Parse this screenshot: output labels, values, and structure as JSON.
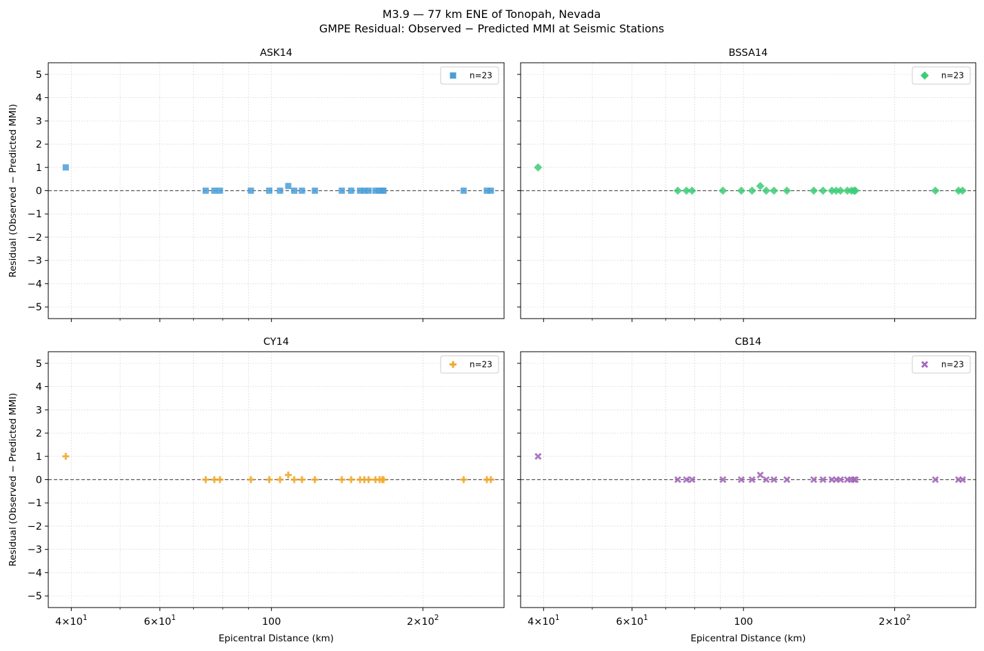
{
  "figure": {
    "title_line1": "M3.9 — 77 km ENE of Tonopah, Nevada",
    "title_line2": "GMPE Residual: Observed − Predicted MMI at Seismic Stations"
  },
  "chart_data": [
    {
      "type": "scatter",
      "title": "ASK14",
      "xlabel": "",
      "ylabel": "Residual (Observed − Predicted MMI)",
      "xscale": "log",
      "xlim": [
        36,
        290
      ],
      "ylim": [
        -5.5,
        5.5
      ],
      "yticks": [
        -5,
        -4,
        -3,
        -2,
        -1,
        0,
        1,
        2,
        3,
        4,
        5
      ],
      "grid": true,
      "reference_line_y": 0,
      "legend": {
        "label": "n=23",
        "placement": "top-right"
      },
      "series": [
        {
          "name": "n=23",
          "marker": "square",
          "color": "#4a9fd8",
          "x": [
            39.0,
            74.0,
            77.0,
            79.0,
            91.0,
            99.0,
            104.0,
            108.0,
            111.0,
            115.0,
            122.0,
            138.0,
            144.0,
            150.0,
            153.0,
            156.0,
            161.0,
            164.0,
            166.0,
            167.0,
            241.0,
            268.0,
            273.0
          ],
          "y": [
            1.0,
            0.0,
            0.0,
            0.0,
            0.0,
            0.0,
            0.0,
            0.2,
            0.0,
            0.0,
            0.0,
            0.0,
            0.0,
            0.0,
            0.0,
            0.0,
            0.0,
            0.0,
            0.0,
            0.0,
            0.0,
            0.0,
            0.0
          ]
        }
      ]
    },
    {
      "type": "scatter",
      "title": "BSSA14",
      "xlabel": "",
      "ylabel": "",
      "xscale": "log",
      "xlim": [
        36,
        290
      ],
      "ylim": [
        -5.5,
        5.5
      ],
      "grid": true,
      "reference_line_y": 0,
      "legend": {
        "label": "n=23",
        "placement": "top-right"
      },
      "series": [
        {
          "name": "n=23",
          "marker": "diamond",
          "color": "#3dcc75",
          "x": [
            39.0,
            74.0,
            77.0,
            79.0,
            91.0,
            99.0,
            104.0,
            108.0,
            111.0,
            115.0,
            122.0,
            138.0,
            144.0,
            150.0,
            153.0,
            156.0,
            161.0,
            164.0,
            166.0,
            167.0,
            241.0,
            268.0,
            273.0
          ],
          "y": [
            1.0,
            0.0,
            0.0,
            0.0,
            0.0,
            0.0,
            0.0,
            0.2,
            0.0,
            0.0,
            0.0,
            0.0,
            0.0,
            0.0,
            0.0,
            0.0,
            0.0,
            0.0,
            0.0,
            0.0,
            0.0,
            0.0,
            0.0
          ]
        }
      ]
    },
    {
      "type": "scatter",
      "title": "CY14",
      "xlabel": "Epicentral Distance (km)",
      "ylabel": "Residual (Observed − Predicted MMI)",
      "xscale": "log",
      "xlim": [
        36,
        290
      ],
      "ylim": [
        -5.5,
        5.5
      ],
      "grid": true,
      "reference_line_y": 0,
      "legend": {
        "label": "n=23",
        "placement": "top-right"
      },
      "series": [
        {
          "name": "n=23",
          "marker": "plus",
          "color": "#f0a830",
          "x": [
            39.0,
            74.0,
            77.0,
            79.0,
            91.0,
            99.0,
            104.0,
            108.0,
            111.0,
            115.0,
            122.0,
            138.0,
            144.0,
            150.0,
            153.0,
            156.0,
            161.0,
            164.0,
            166.0,
            167.0,
            241.0,
            268.0,
            273.0
          ],
          "y": [
            1.0,
            0.0,
            0.0,
            0.0,
            0.0,
            0.0,
            0.0,
            0.2,
            0.0,
            0.0,
            0.0,
            0.0,
            0.0,
            0.0,
            0.0,
            0.0,
            0.0,
            0.0,
            0.0,
            0.0,
            0.0,
            0.0,
            0.0
          ]
        }
      ]
    },
    {
      "type": "scatter",
      "title": "CB14",
      "xlabel": "Epicentral Distance (km)",
      "ylabel": "",
      "xscale": "log",
      "xlim": [
        36,
        290
      ],
      "ylim": [
        -5.5,
        5.5
      ],
      "grid": true,
      "reference_line_y": 0,
      "legend": {
        "label": "n=23",
        "placement": "top-right"
      },
      "series": [
        {
          "name": "n=23",
          "marker": "x",
          "color": "#a569bd",
          "x": [
            39.0,
            74.0,
            77.0,
            79.0,
            91.0,
            99.0,
            104.0,
            108.0,
            111.0,
            115.0,
            122.0,
            138.0,
            144.0,
            150.0,
            153.0,
            156.0,
            161.0,
            164.0,
            166.0,
            167.0,
            241.0,
            268.0,
            273.0
          ],
          "y": [
            1.0,
            0.0,
            0.0,
            0.0,
            0.0,
            0.0,
            0.0,
            0.2,
            0.0,
            0.0,
            0.0,
            0.0,
            0.0,
            0.0,
            0.0,
            0.0,
            0.0,
            0.0,
            0.0,
            0.0,
            0.0,
            0.0,
            0.0
          ]
        }
      ]
    }
  ],
  "shared_x_ticks": [
    {
      "value": 40,
      "mantissa": "4",
      "exp": "1"
    },
    {
      "value": 60,
      "mantissa": "6",
      "exp": "1"
    },
    {
      "value": 100,
      "mantissa": "",
      "exp": "",
      "plain": "100"
    },
    {
      "value": 200,
      "mantissa": "2",
      "exp": "2"
    }
  ]
}
